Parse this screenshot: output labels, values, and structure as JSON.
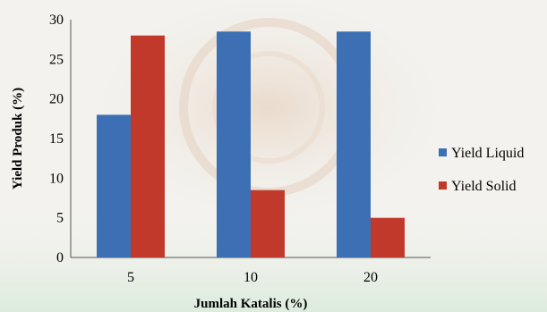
{
  "chart_data": {
    "type": "bar",
    "categories": [
      "5",
      "10",
      "20"
    ],
    "series": [
      {
        "name": "Yield Liquid",
        "values": [
          18,
          28.5,
          28.5
        ],
        "color": "#3d6fb4"
      },
      {
        "name": "Yield Solid",
        "values": [
          28,
          8.5,
          5
        ],
        "color": "#c0392b"
      }
    ],
    "xlabel": "Jumlah Katalis (%)",
    "ylabel": "Yield Produk (%)",
    "ylim": [
      0,
      30
    ],
    "yticks": [
      0,
      5,
      10,
      15,
      20,
      25,
      30
    ],
    "grid": false,
    "legend_position": "right"
  }
}
